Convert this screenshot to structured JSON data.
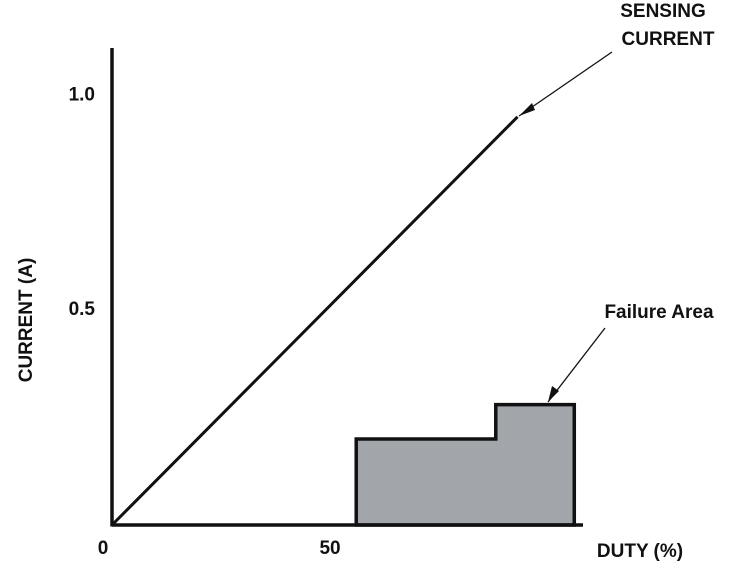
{
  "chart_data": {
    "type": "line",
    "x_label": "DUTY (%)",
    "y_label": "CURRENT (A)",
    "xlim": [
      0,
      108
    ],
    "ylim": [
      0,
      1.11
    ],
    "xticks": [
      0,
      50
    ],
    "yticks": [
      0.5,
      {
        "value": 1,
        "label": "1.0"
      }
    ],
    "grid": false,
    "series": [
      {
        "color": "#111111",
        "x": [
          0,
          93
        ],
        "values": [
          0,
          0.95
        ]
      },
      {
        "color": "#111111",
        "fill": "#a2a6aa",
        "x": [
          56,
          56,
          88,
          88,
          106,
          106
        ],
        "values": [
          0,
          0.2,
          0.2,
          0.28,
          0.28,
          0
        ]
      }
    ],
    "annotations": [
      {
        "lines": [
          "SENSING",
          "CURRENT"
        ]
      },
      {
        "lines": [
          "Failure Area"
        ]
      }
    ]
  }
}
